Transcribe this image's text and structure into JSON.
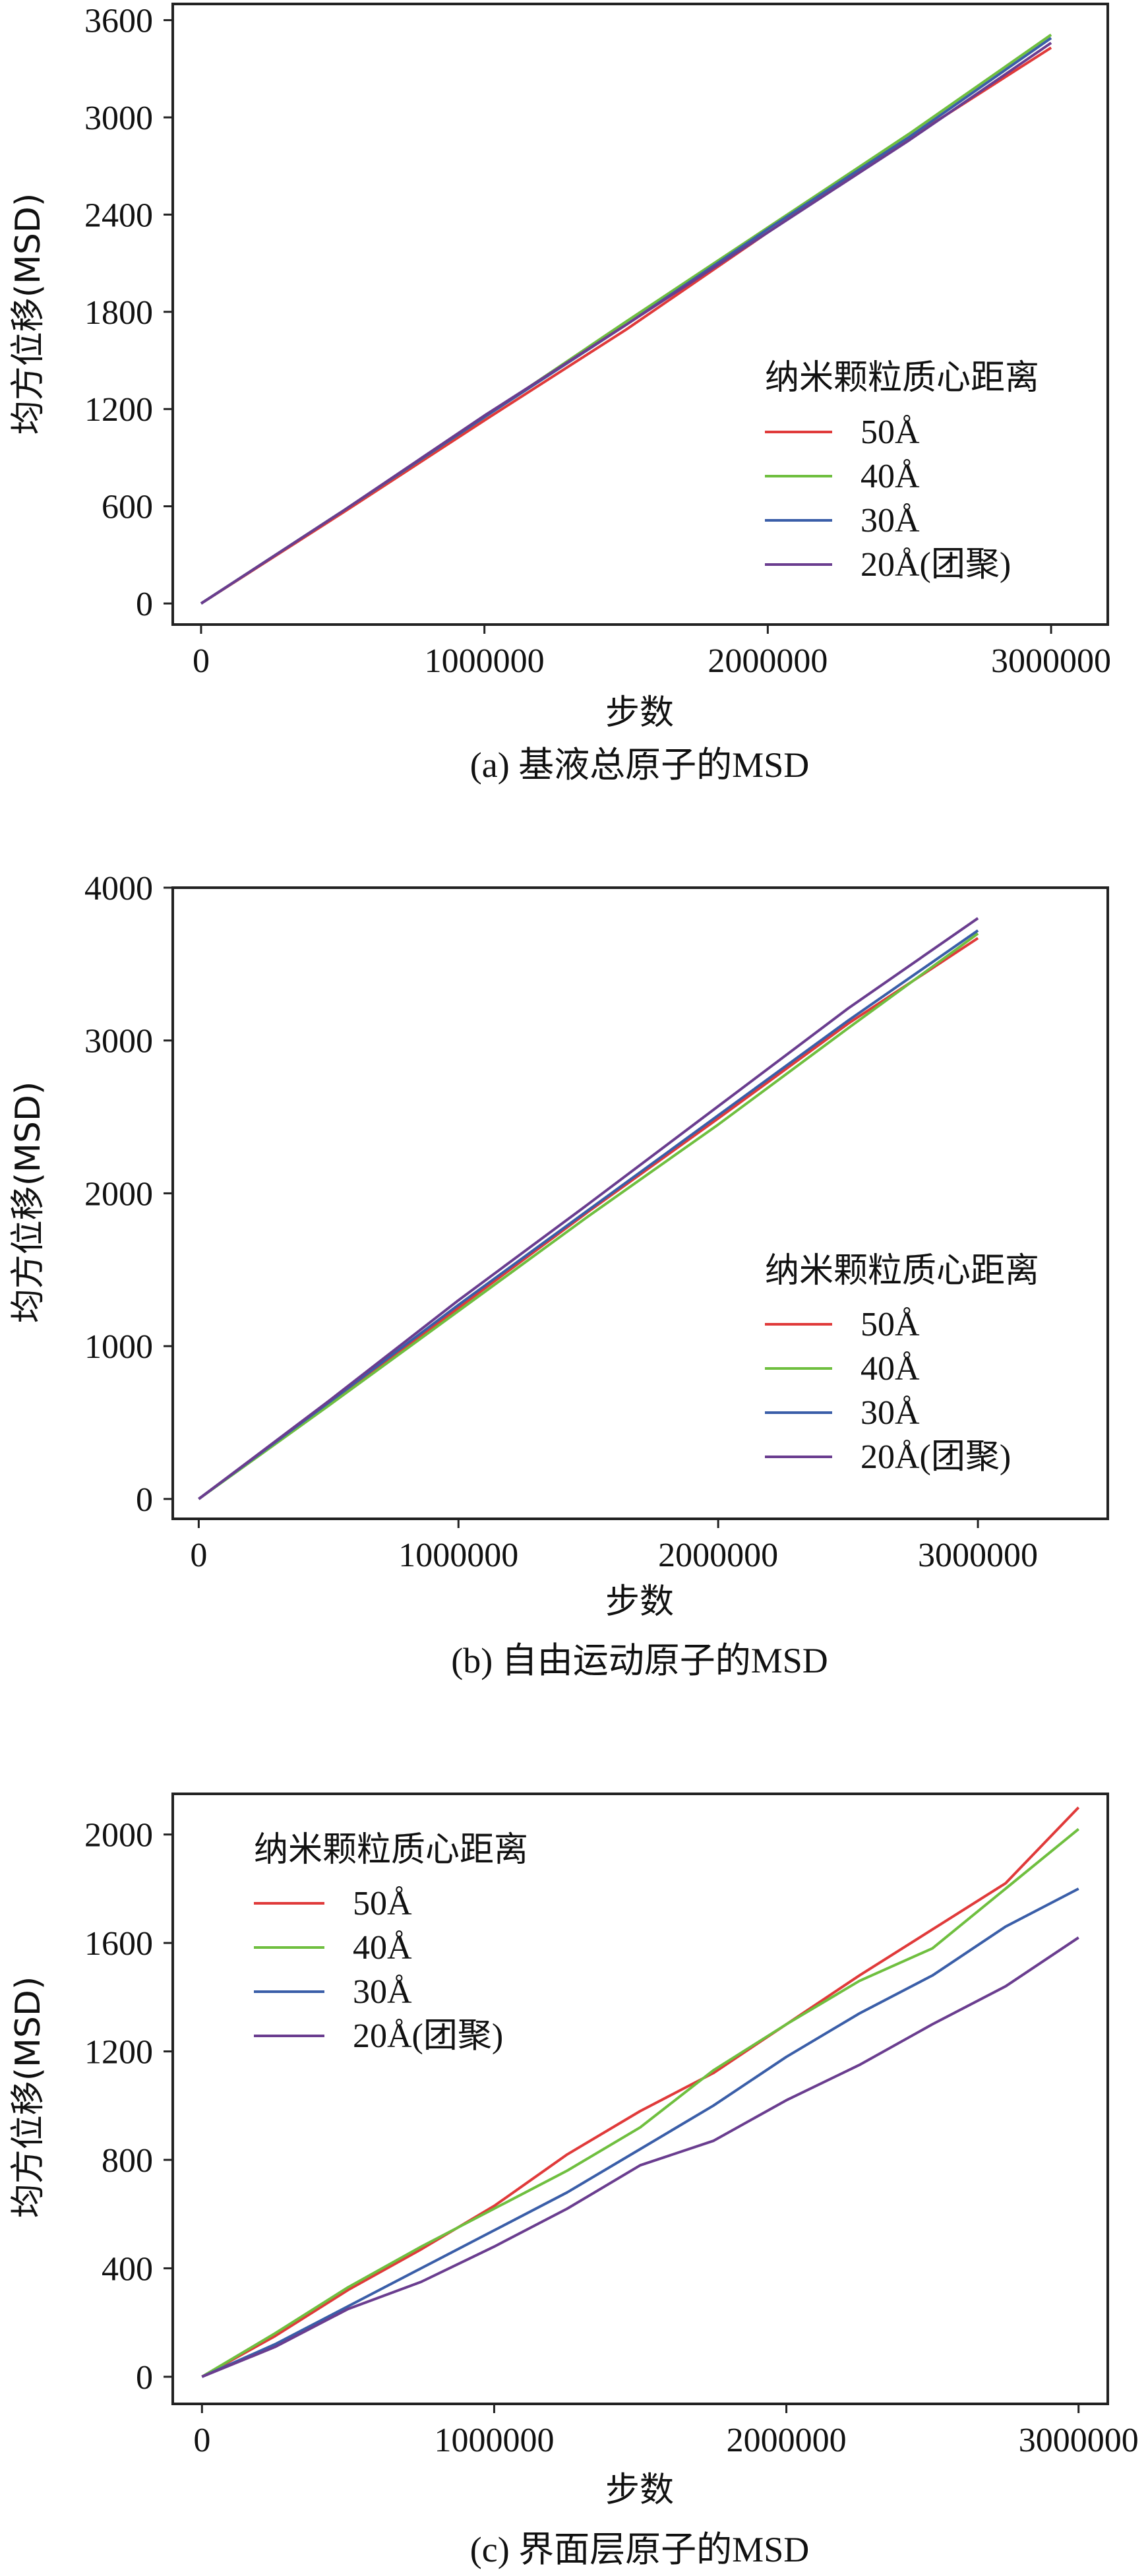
{
  "colors": {
    "50A": "#e03a3a",
    "40A": "#6fbf3f",
    "30A": "#3a5ea8",
    "20A": "#6a3d8f"
  },
  "chart_data": [
    {
      "type": "line",
      "caption": "(a) 基液总原子的MSD",
      "xlabel": "步数",
      "ylabel": "均方位移(MSD)",
      "xlim": [
        -100000,
        3200000
      ],
      "ylim": [
        -130,
        3700
      ],
      "xticks": [
        0,
        1000000,
        2000000,
        3000000
      ],
      "xtick_labels": [
        "0",
        "1000000",
        "2000000",
        "3000000"
      ],
      "yticks": [
        0,
        600,
        1200,
        1800,
        2400,
        3000,
        3600
      ],
      "ytick_labels": [
        "0",
        "600",
        "1200",
        "1800",
        "2400",
        "3000",
        "3600"
      ],
      "legend": {
        "title": "纳米颗粒质心距离",
        "position": "center-right"
      },
      "x": [
        0,
        500000,
        1000000,
        1500000,
        2000000,
        2500000,
        3000000
      ],
      "series": [
        {
          "name": "50Å",
          "color_key": "50A",
          "values": [
            0,
            560,
            1130,
            1690,
            2290,
            2870,
            3430
          ]
        },
        {
          "name": "40Å",
          "color_key": "40A",
          "values": [
            0,
            570,
            1150,
            1740,
            2320,
            2900,
            3510
          ]
        },
        {
          "name": "30Å",
          "color_key": "30A",
          "values": [
            0,
            570,
            1150,
            1720,
            2310,
            2880,
            3490
          ]
        },
        {
          "name": "20Å(团聚)",
          "color_key": "20A",
          "values": [
            0,
            570,
            1160,
            1720,
            2290,
            2860,
            3460
          ]
        }
      ]
    },
    {
      "type": "line",
      "caption": "(b) 自由运动原子的MSD",
      "xlabel": "步数",
      "ylabel": "均方位移(MSD)",
      "xlim": [
        -100000,
        3500000
      ],
      "ylim": [
        -130,
        4000
      ],
      "xticks": [
        0,
        1000000,
        2000000,
        3000000
      ],
      "xtick_labels": [
        "0",
        "1000000",
        "2000000",
        "3000000"
      ],
      "yticks": [
        0,
        1000,
        2000,
        3000,
        4000
      ],
      "ytick_labels": [
        "0",
        "1000",
        "2000",
        "3000",
        "4000"
      ],
      "legend": {
        "title": "纳米颗粒质心距离",
        "position": "center-right"
      },
      "x": [
        0,
        500000,
        1000000,
        1500000,
        2000000,
        2500000,
        3000000
      ],
      "series": [
        {
          "name": "50Å",
          "color_key": "50A",
          "values": [
            0,
            620,
            1250,
            1880,
            2490,
            3110,
            3670
          ]
        },
        {
          "name": "40Å",
          "color_key": "40A",
          "values": [
            0,
            610,
            1230,
            1850,
            2450,
            3080,
            3700
          ]
        },
        {
          "name": "30Å",
          "color_key": "30A",
          "values": [
            0,
            630,
            1270,
            1890,
            2510,
            3130,
            3720
          ]
        },
        {
          "name": "20Å(团聚)",
          "color_key": "20A",
          "values": [
            0,
            640,
            1300,
            1930,
            2570,
            3210,
            3800
          ]
        }
      ]
    },
    {
      "type": "line",
      "caption": "(c) 界面层原子的MSD",
      "xlabel": "步数",
      "ylabel": "均方位移(MSD)",
      "xlim": [
        -100000,
        3100000
      ],
      "ylim": [
        -100,
        2150
      ],
      "xticks": [
        0,
        1000000,
        2000000,
        3000000
      ],
      "xtick_labels": [
        "0",
        "1000000",
        "2000000",
        "3000000"
      ],
      "yticks": [
        0,
        400,
        800,
        1200,
        1600,
        2000
      ],
      "ytick_labels": [
        "0",
        "400",
        "800",
        "1200",
        "1600",
        "2000"
      ],
      "legend": {
        "title": "纳米颗粒质心距离",
        "position": "top-left"
      },
      "x": [
        0,
        250000,
        500000,
        750000,
        1000000,
        1250000,
        1500000,
        1750000,
        2000000,
        2250000,
        2500000,
        2750000,
        3000000
      ],
      "series": [
        {
          "name": "50Å",
          "color_key": "50A",
          "values": [
            0,
            150,
            320,
            470,
            630,
            820,
            980,
            1120,
            1300,
            1480,
            1650,
            1820,
            2100
          ]
        },
        {
          "name": "40Å",
          "color_key": "40A",
          "values": [
            0,
            160,
            330,
            480,
            620,
            760,
            920,
            1130,
            1300,
            1460,
            1580,
            1800,
            2020
          ]
        },
        {
          "name": "30Å",
          "color_key": "30A",
          "values": [
            0,
            120,
            260,
            400,
            540,
            680,
            840,
            1000,
            1180,
            1340,
            1480,
            1660,
            1800
          ]
        },
        {
          "name": "20Å(团聚)",
          "color_key": "20A",
          "values": [
            0,
            110,
            250,
            350,
            480,
            620,
            780,
            870,
            1020,
            1150,
            1300,
            1440,
            1620
          ]
        }
      ]
    }
  ]
}
